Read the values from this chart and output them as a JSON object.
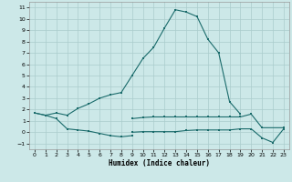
{
  "xlabel": "Humidex (Indice chaleur)",
  "bg_color": "#cce8e8",
  "grid_color": "#aacccc",
  "line_color": "#1a6b6b",
  "ylim": [
    -1.5,
    11.5
  ],
  "xlim": [
    -0.5,
    23.5
  ],
  "yticks": [
    -1,
    0,
    1,
    2,
    3,
    4,
    5,
    6,
    7,
    8,
    9,
    10,
    11
  ],
  "xticks": [
    0,
    1,
    2,
    3,
    4,
    5,
    6,
    7,
    8,
    9,
    10,
    11,
    12,
    13,
    14,
    15,
    16,
    17,
    18,
    19,
    20,
    21,
    22,
    23
  ],
  "line_main_x": [
    0,
    1,
    2,
    3,
    4,
    5,
    6,
    7,
    8,
    9,
    10,
    11,
    12,
    13,
    14,
    15,
    16,
    17,
    18,
    19
  ],
  "line_main_y": [
    1.7,
    1.5,
    1.7,
    1.5,
    2.1,
    2.5,
    3.0,
    3.3,
    3.5,
    5.0,
    6.5,
    7.5,
    9.2,
    10.8,
    10.6,
    10.2,
    8.2,
    7.0,
    2.7,
    1.6
  ],
  "line_lo_x": [
    0,
    1,
    2,
    3,
    4,
    5,
    6,
    7,
    8,
    9
  ],
  "line_lo_y": [
    1.7,
    1.5,
    1.2,
    0.3,
    0.2,
    0.1,
    -0.1,
    -0.3,
    -0.4,
    -0.3
  ],
  "line_mid_x": [
    9,
    10,
    11,
    12,
    13,
    14,
    15,
    16,
    17,
    18,
    19,
    20,
    21,
    23
  ],
  "line_mid_y": [
    1.2,
    1.3,
    1.35,
    1.35,
    1.35,
    1.35,
    1.35,
    1.35,
    1.35,
    1.35,
    1.35,
    1.6,
    0.4,
    0.4
  ],
  "line_bot_x": [
    9,
    10,
    11,
    12,
    13,
    14,
    15,
    16,
    17,
    18,
    19,
    20,
    21,
    22,
    23
  ],
  "line_bot_y": [
    0.0,
    0.05,
    0.05,
    0.05,
    0.05,
    0.15,
    0.2,
    0.2,
    0.2,
    0.2,
    0.3,
    0.3,
    -0.5,
    -0.9,
    0.3
  ]
}
